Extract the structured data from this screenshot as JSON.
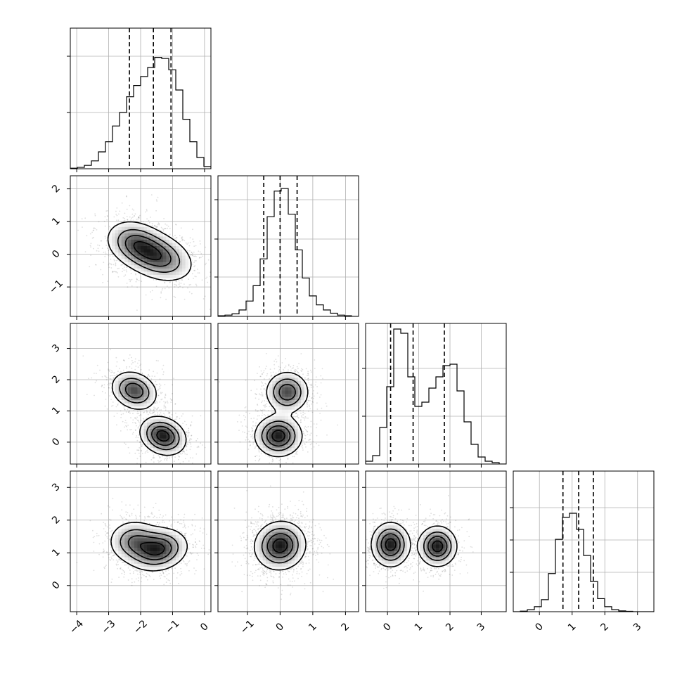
{
  "chart_data": {
    "type": "corner",
    "n_params": 4,
    "params": [
      {
        "range": [
          -4.2,
          0.2
        ],
        "ticks": [
          -4,
          -3,
          -2,
          -1,
          0
        ],
        "tick_labels": [
          "−4",
          "−3",
          "−2",
          "−1",
          "0"
        ],
        "quantiles": [
          -2.35,
          -1.6,
          -1.05
        ],
        "hist_edges_start": -4.2,
        "hist_bin_width": 0.22,
        "hist_counts": [
          0.005,
          0.012,
          0.03,
          0.07,
          0.15,
          0.24,
          0.38,
          0.5,
          0.64,
          0.74,
          0.82,
          0.9,
          0.99,
          0.98,
          0.88,
          0.7,
          0.44,
          0.24,
          0.1,
          0.02
        ],
        "hist_ylim": [
          0,
          1.25
        ],
        "hist_grid_fracs": [
          0.4,
          0.8
        ]
      },
      {
        "range": [
          -1.9,
          2.4
        ],
        "ticks": [
          -1,
          0,
          1,
          2
        ],
        "tick_labels": [
          "−1",
          "0",
          "1",
          "2"
        ],
        "quantiles": [
          -0.5,
          0.0,
          0.52
        ],
        "hist_edges_start": -1.9,
        "hist_bin_width": 0.215,
        "hist_counts": [
          0.005,
          0.01,
          0.02,
          0.05,
          0.12,
          0.24,
          0.45,
          0.78,
          0.98,
          1.0,
          0.8,
          0.52,
          0.3,
          0.16,
          0.09,
          0.05,
          0.025,
          0.01,
          0.005,
          0.0
        ],
        "hist_ylim": [
          0,
          1.1
        ],
        "hist_grid_fracs": [
          0.28,
          0.55,
          0.83
        ]
      },
      {
        "range": [
          -0.7,
          3.8
        ],
        "ticks": [
          0,
          1,
          2,
          3
        ],
        "tick_labels": [
          "0",
          "1",
          "2",
          "3"
        ],
        "quantiles": [
          0.1,
          0.82,
          1.82
        ],
        "hist_edges_start": -0.7,
        "hist_bin_width": 0.225,
        "hist_counts": [
          0.02,
          0.06,
          0.26,
          0.55,
          0.96,
          0.93,
          0.62,
          0.41,
          0.44,
          0.54,
          0.62,
          0.7,
          0.71,
          0.52,
          0.3,
          0.14,
          0.05,
          0.02,
          0.01,
          0.0
        ],
        "hist_ylim": [
          0,
          1.0
        ],
        "hist_grid_fracs": [
          0.34,
          0.68
        ]
      },
      {
        "range": [
          -0.8,
          3.5
        ],
        "ticks": [
          0,
          1,
          2,
          3
        ],
        "tick_labels": [
          "0",
          "1",
          "2",
          "3"
        ],
        "quantiles": [
          0.72,
          1.2,
          1.65
        ],
        "hist_edges_start": -0.8,
        "hist_bin_width": 0.215,
        "hist_counts": [
          0.0,
          0.005,
          0.02,
          0.05,
          0.12,
          0.38,
          0.72,
          0.94,
          0.98,
          0.82,
          0.56,
          0.3,
          0.13,
          0.05,
          0.02,
          0.008,
          0.004,
          0.0,
          0.0,
          0.0
        ],
        "hist_ylim": [
          0,
          1.4
        ],
        "hist_grid_fracs": [
          0.28,
          0.51,
          0.74
        ]
      }
    ],
    "pairs": [
      {
        "i": 0,
        "j": 1,
        "components": [
          {
            "mx": -1.5,
            "my": -0.05,
            "sx": 0.55,
            "sy": 0.38,
            "rho": -0.35,
            "w": 0.6
          },
          {
            "mx": -2.2,
            "my": 0.35,
            "sx": 0.45,
            "sy": 0.35,
            "rho": -0.2,
            "w": 0.4
          }
        ]
      },
      {
        "i": 0,
        "j": 2,
        "components": [
          {
            "mx": -2.2,
            "my": 1.65,
            "sx": 0.35,
            "sy": 0.3,
            "rho": -0.2,
            "w": 0.45
          },
          {
            "mx": -1.3,
            "my": 0.2,
            "sx": 0.35,
            "sy": 0.3,
            "rho": -0.2,
            "w": 0.55
          }
        ]
      },
      {
        "i": 1,
        "j": 2,
        "components": [
          {
            "mx": 0.22,
            "my": 1.6,
            "sx": 0.32,
            "sy": 0.32,
            "rho": 0.0,
            "w": 0.45
          },
          {
            "mx": -0.05,
            "my": 0.2,
            "sx": 0.35,
            "sy": 0.32,
            "rho": 0.0,
            "w": 0.55
          }
        ]
      },
      {
        "i": 0,
        "j": 3,
        "components": [
          {
            "mx": -1.45,
            "my": 1.1,
            "sx": 0.45,
            "sy": 0.32,
            "rho": 0.15,
            "w": 0.6
          },
          {
            "mx": -2.2,
            "my": 1.35,
            "sx": 0.4,
            "sy": 0.32,
            "rho": 0.0,
            "w": 0.4
          }
        ]
      },
      {
        "i": 1,
        "j": 3,
        "components": [
          {
            "mx": 0.0,
            "my": 1.22,
            "sx": 0.38,
            "sy": 0.36,
            "rho": 0.05,
            "w": 1.0
          }
        ]
      },
      {
        "i": 2,
        "j": 3,
        "components": [
          {
            "mx": 0.1,
            "my": 1.25,
            "sx": 0.3,
            "sy": 0.33,
            "rho": 0.0,
            "w": 0.5
          },
          {
            "mx": 1.6,
            "my": 1.2,
            "sx": 0.3,
            "sy": 0.3,
            "rho": 0.0,
            "w": 0.5
          }
        ]
      }
    ],
    "contour_levels": [
      0.12,
      0.35,
      0.6,
      0.85
    ],
    "xlabel": "",
    "ylabel": "",
    "title": "",
    "grid": true
  }
}
